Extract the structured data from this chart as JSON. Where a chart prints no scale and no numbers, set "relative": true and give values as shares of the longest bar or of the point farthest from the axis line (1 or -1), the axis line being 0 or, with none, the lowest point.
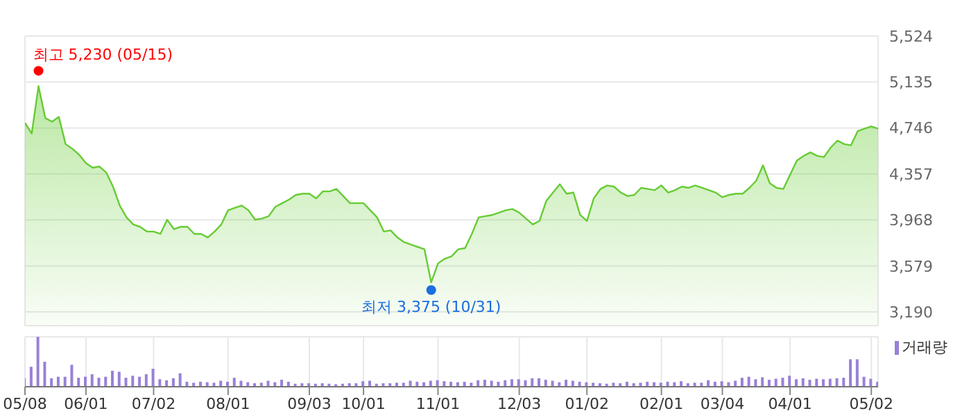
{
  "chart_data": [
    {
      "type": "area",
      "series": [
        {
          "color": "#66cc33",
          "values": [
            4790,
            4700,
            5100,
            4830,
            4800,
            4840,
            4610,
            4570,
            4520,
            4450,
            4410,
            4420,
            4370,
            4250,
            4090,
            3990,
            3930,
            3910,
            3870,
            3870,
            3850,
            3970,
            3890,
            3910,
            3910,
            3850,
            3850,
            3820,
            3870,
            3930,
            4050,
            4070,
            4090,
            4050,
            3970,
            3980,
            4000,
            4080,
            4110,
            4140,
            4180,
            4190,
            4190,
            4150,
            4210,
            4210,
            4230,
            4170,
            4110,
            4110,
            4110,
            4050,
            3990,
            3870,
            3880,
            3820,
            3780,
            3760,
            3740,
            3720,
            3440,
            3600,
            3640,
            3660,
            3720,
            3730,
            3850,
            3990,
            4000,
            4010,
            4030,
            4050,
            4060,
            4030,
            3980,
            3930,
            3960,
            4130,
            4200,
            4270,
            4190,
            4200,
            4010,
            3960,
            4150,
            4230,
            4260,
            4250,
            4200,
            4170,
            4180,
            4240,
            4230,
            4220,
            4260,
            4200,
            4220,
            4250,
            4240,
            4260,
            4240,
            4220,
            4200,
            4160,
            4180,
            4190,
            4190,
            4240,
            4300,
            4430,
            4280,
            4240,
            4230,
            4350,
            4470,
            4510,
            4540,
            4510,
            4500,
            4580,
            4640,
            4610,
            4600,
            4720,
            4740,
            4760,
            4740
          ]
        },
        {
          "type": "scatter",
          "color": "#ff0000",
          "values": [
            null,
            null,
            5230,
            null,
            null,
            null,
            null,
            null,
            null,
            null,
            null,
            null,
            null,
            null,
            null,
            null,
            null,
            null,
            null,
            null,
            null,
            null,
            null,
            null,
            null,
            null,
            null,
            null,
            null,
            null,
            null,
            null,
            null,
            null,
            null,
            null,
            null,
            null,
            null,
            null,
            null,
            null,
            null,
            null,
            null,
            null,
            null,
            null,
            null,
            null,
            null,
            null,
            null,
            null,
            null,
            null,
            null,
            null,
            null,
            null,
            null,
            null,
            null,
            null,
            null,
            null,
            null,
            null,
            null,
            null,
            null,
            null,
            null,
            null,
            null,
            null,
            null,
            null,
            null,
            null,
            null,
            null,
            null,
            null,
            null,
            null,
            null,
            null,
            null,
            null,
            null,
            null,
            null,
            null,
            null,
            null,
            null,
            null,
            null,
            null,
            null,
            null,
            null,
            null,
            null,
            null,
            null,
            null,
            null,
            null,
            null,
            null,
            null,
            null,
            null,
            null,
            null,
            null,
            null,
            null,
            null,
            null,
            null,
            null,
            null,
            null,
            null
          ]
        },
        {
          "type": "scatter",
          "color": "#1a6ee0",
          "values": [
            null,
            null,
            null,
            null,
            null,
            null,
            null,
            null,
            null,
            null,
            null,
            null,
            null,
            null,
            null,
            null,
            null,
            null,
            null,
            null,
            null,
            null,
            null,
            null,
            null,
            null,
            null,
            null,
            null,
            null,
            null,
            null,
            null,
            null,
            null,
            null,
            null,
            null,
            null,
            null,
            null,
            null,
            null,
            null,
            null,
            null,
            null,
            null,
            null,
            null,
            null,
            null,
            null,
            null,
            null,
            null,
            null,
            null,
            null,
            null,
            3375,
            null,
            null,
            null,
            null,
            null,
            null,
            null,
            null,
            null,
            null,
            null,
            null,
            null,
            null,
            null,
            null,
            null,
            null,
            null,
            null,
            null,
            null,
            null,
            null,
            null,
            null,
            null,
            null,
            null,
            null,
            null,
            null,
            null,
            null,
            null,
            null,
            null,
            null,
            null,
            null,
            null,
            null,
            null,
            null,
            null,
            null,
            null,
            null,
            null,
            null,
            null,
            null,
            null,
            null,
            null,
            null,
            null,
            null,
            null,
            null,
            null,
            null,
            null,
            null,
            null,
            null
          ]
        }
      ],
      "ylim": [
        3073,
        5524
      ],
      "yticks": [
        {
          "value": 3190,
          "label": "3,190"
        },
        {
          "value": 3579,
          "label": "3,579"
        },
        {
          "value": 3968,
          "label": "3,968"
        },
        {
          "value": 4357,
          "label": "4,357"
        },
        {
          "value": 4746,
          "label": "4,746"
        },
        {
          "value": 5135,
          "label": "5,135"
        },
        {
          "value": 5524,
          "label": "5,524"
        }
      ],
      "grid": true,
      "tick_labels": "y",
      "annotations": [
        "최고 5,230 (05/15)",
        "최저 3,375 (10/31)"
      ]
    },
    {
      "type": "bar",
      "relative": true,
      "categories": [
        "05/08",
        null,
        null,
        null,
        null,
        null,
        null,
        null,
        null,
        "06/01",
        null,
        null,
        null,
        null,
        null,
        null,
        null,
        null,
        null,
        "07/02",
        null,
        null,
        null,
        null,
        null,
        null,
        null,
        null,
        null,
        null,
        "08/01",
        null,
        null,
        null,
        null,
        null,
        null,
        null,
        null,
        null,
        null,
        null,
        "09/03",
        null,
        null,
        null,
        null,
        null,
        null,
        null,
        "10/01",
        null,
        null,
        null,
        null,
        null,
        null,
        null,
        null,
        null,
        null,
        "11/01",
        null,
        null,
        null,
        null,
        null,
        null,
        null,
        null,
        null,
        null,
        null,
        "12/03",
        null,
        null,
        null,
        null,
        null,
        null,
        null,
        null,
        null,
        "01/02",
        null,
        null,
        null,
        null,
        null,
        null,
        null,
        null,
        null,
        null,
        "02/01",
        null,
        null,
        null,
        null,
        null,
        null,
        null,
        null,
        "03/04",
        null,
        null,
        null,
        null,
        null,
        null,
        null,
        null,
        null,
        "04/01",
        null,
        null,
        null,
        null,
        null,
        null,
        null,
        null,
        null,
        null,
        null,
        "05/02",
        null
      ],
      "series": [
        {
          "name": "거래량",
          "color": "#9980d8",
          "values": [
            0.17,
            0.4,
            1.0,
            0.5,
            0.17,
            0.2,
            0.2,
            0.44,
            0.18,
            0.2,
            0.25,
            0.18,
            0.2,
            0.32,
            0.3,
            0.18,
            0.22,
            0.2,
            0.25,
            0.36,
            0.15,
            0.13,
            0.17,
            0.27,
            0.1,
            0.08,
            0.1,
            0.09,
            0.08,
            0.12,
            0.1,
            0.18,
            0.12,
            0.09,
            0.07,
            0.08,
            0.12,
            0.09,
            0.14,
            0.1,
            0.06,
            0.07,
            0.07,
            0.06,
            0.07,
            0.06,
            0.05,
            0.06,
            0.07,
            0.07,
            0.11,
            0.12,
            0.06,
            0.07,
            0.07,
            0.08,
            0.08,
            0.12,
            0.1,
            0.09,
            0.12,
            0.13,
            0.11,
            0.1,
            0.09,
            0.1,
            0.08,
            0.13,
            0.14,
            0.12,
            0.1,
            0.13,
            0.15,
            0.15,
            0.13,
            0.17,
            0.17,
            0.14,
            0.12,
            0.09,
            0.14,
            0.12,
            0.1,
            0.09,
            0.08,
            0.07,
            0.06,
            0.08,
            0.07,
            0.1,
            0.07,
            0.08,
            0.1,
            0.09,
            0.08,
            0.1,
            0.09,
            0.11,
            0.07,
            0.08,
            0.08,
            0.13,
            0.1,
            0.11,
            0.09,
            0.12,
            0.18,
            0.2,
            0.15,
            0.19,
            0.14,
            0.16,
            0.18,
            0.22,
            0.15,
            0.17,
            0.14,
            0.16,
            0.15,
            0.16,
            0.17,
            0.18,
            0.55,
            0.55,
            0.2,
            0.16,
            0.1
          ]
        }
      ],
      "legend": "top right",
      "grid": true,
      "tick_labels": "x"
    }
  ]
}
